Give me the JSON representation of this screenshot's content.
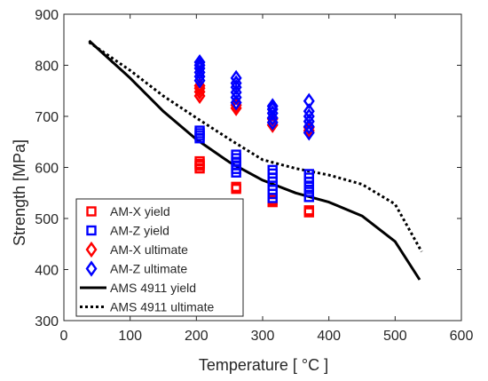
{
  "chart_data": {
    "type": "scatter",
    "xlabel": "Temperature [ °C ]",
    "ylabel": "Strength [MPa]",
    "xlim": [
      0,
      600
    ],
    "ylim": [
      300,
      900
    ],
    "xticks": [
      0,
      100,
      200,
      300,
      400,
      500,
      600
    ],
    "yticks": [
      300,
      400,
      500,
      600,
      700,
      800,
      900
    ],
    "grid": false,
    "legend_position": "lower-left",
    "series": [
      {
        "name": "AM-X yield",
        "marker": "square",
        "color": "#ff0000",
        "points": [
          [
            205,
            598
          ],
          [
            205,
            603
          ],
          [
            205,
            607
          ],
          [
            205,
            612
          ],
          [
            260,
            558
          ],
          [
            260,
            562
          ],
          [
            315,
            532
          ],
          [
            315,
            536
          ],
          [
            370,
            512
          ],
          [
            370,
            516
          ]
        ]
      },
      {
        "name": "AM-Z yield",
        "marker": "square",
        "color": "#0000ff",
        "points": [
          [
            205,
            657
          ],
          [
            205,
            662
          ],
          [
            205,
            667
          ],
          [
            205,
            672
          ],
          [
            260,
            590
          ],
          [
            260,
            597
          ],
          [
            260,
            604
          ],
          [
            260,
            611
          ],
          [
            260,
            618
          ],
          [
            260,
            625
          ],
          [
            315,
            540
          ],
          [
            315,
            548
          ],
          [
            315,
            556
          ],
          [
            315,
            564
          ],
          [
            315,
            572
          ],
          [
            315,
            580
          ],
          [
            315,
            588
          ],
          [
            315,
            595
          ],
          [
            370,
            542
          ],
          [
            370,
            552
          ],
          [
            370,
            562
          ],
          [
            370,
            572
          ],
          [
            370,
            580
          ],
          [
            370,
            587
          ]
        ]
      },
      {
        "name": "AM-X ultimate",
        "marker": "diamond",
        "color": "#ff0000",
        "points": [
          [
            205,
            740
          ],
          [
            205,
            748
          ],
          [
            205,
            755
          ],
          [
            205,
            760
          ],
          [
            260,
            716
          ],
          [
            260,
            722
          ],
          [
            315,
            683
          ],
          [
            315,
            695
          ],
          [
            370,
            672
          ],
          [
            370,
            678
          ]
        ]
      },
      {
        "name": "AM-Z ultimate",
        "marker": "diamond",
        "color": "#0000ff",
        "points": [
          [
            205,
            770
          ],
          [
            205,
            778
          ],
          [
            205,
            786
          ],
          [
            205,
            794
          ],
          [
            205,
            800
          ],
          [
            205,
            806
          ],
          [
            260,
            727
          ],
          [
            260,
            737
          ],
          [
            260,
            747
          ],
          [
            260,
            757
          ],
          [
            260,
            765
          ],
          [
            260,
            775
          ],
          [
            315,
            688
          ],
          [
            315,
            697
          ],
          [
            315,
            706
          ],
          [
            315,
            714
          ],
          [
            315,
            720
          ],
          [
            370,
            668
          ],
          [
            370,
            680
          ],
          [
            370,
            690
          ],
          [
            370,
            700
          ],
          [
            370,
            710
          ],
          [
            370,
            730
          ]
        ]
      },
      {
        "name": "AMS 4911 yield",
        "style": "line-solid",
        "color": "#000000",
        "points": [
          [
            38,
            848
          ],
          [
            100,
            775
          ],
          [
            150,
            710
          ],
          [
            200,
            655
          ],
          [
            250,
            610
          ],
          [
            300,
            575
          ],
          [
            350,
            550
          ],
          [
            400,
            532
          ],
          [
            450,
            505
          ],
          [
            500,
            455
          ],
          [
            537,
            380
          ]
        ]
      },
      {
        "name": "AMS 4911 ultimate",
        "style": "line-dotted",
        "color": "#000000",
        "points": [
          [
            38,
            845
          ],
          [
            100,
            790
          ],
          [
            150,
            740
          ],
          [
            200,
            697
          ],
          [
            250,
            655
          ],
          [
            300,
            615
          ],
          [
            350,
            598
          ],
          [
            400,
            585
          ],
          [
            450,
            567
          ],
          [
            500,
            528
          ],
          [
            540,
            435
          ]
        ]
      }
    ]
  }
}
